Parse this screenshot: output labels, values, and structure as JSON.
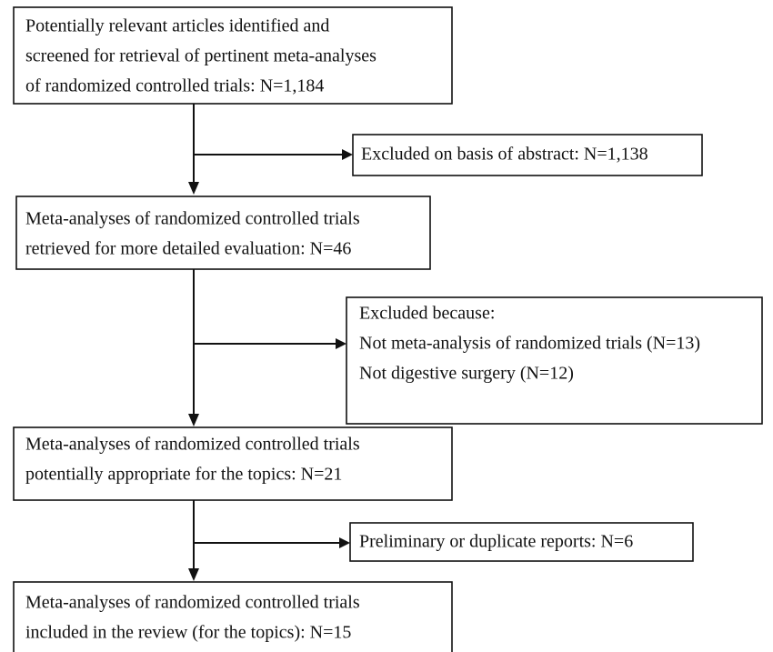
{
  "nodes": [
    {
      "lines": [
        "Potentially relevant articles identified and",
        "screened for retrieval of pertinent meta-analyses",
        "of randomized controlled trials: N=1,184"
      ]
    },
    {
      "lines": [
        "Excluded on basis of abstract: N=1,138"
      ]
    },
    {
      "lines": [
        "Meta-analyses of randomized controlled trials",
        "retrieved for more detailed evaluation: N=46"
      ]
    },
    {
      "lines": [
        "Excluded because:",
        "Not meta-analysis of randomized trials (N=13)",
        "Not digestive surgery (N=12)"
      ]
    },
    {
      "lines": [
        "Meta-analyses of randomized controlled trials",
        "potentially appropriate for the topics: N=21"
      ]
    },
    {
      "lines": [
        "Preliminary or duplicate reports: N=6"
      ]
    },
    {
      "lines": [
        "Meta-analyses of randomized controlled trials",
        "included in the review (for the topics): N=15"
      ]
    }
  ]
}
